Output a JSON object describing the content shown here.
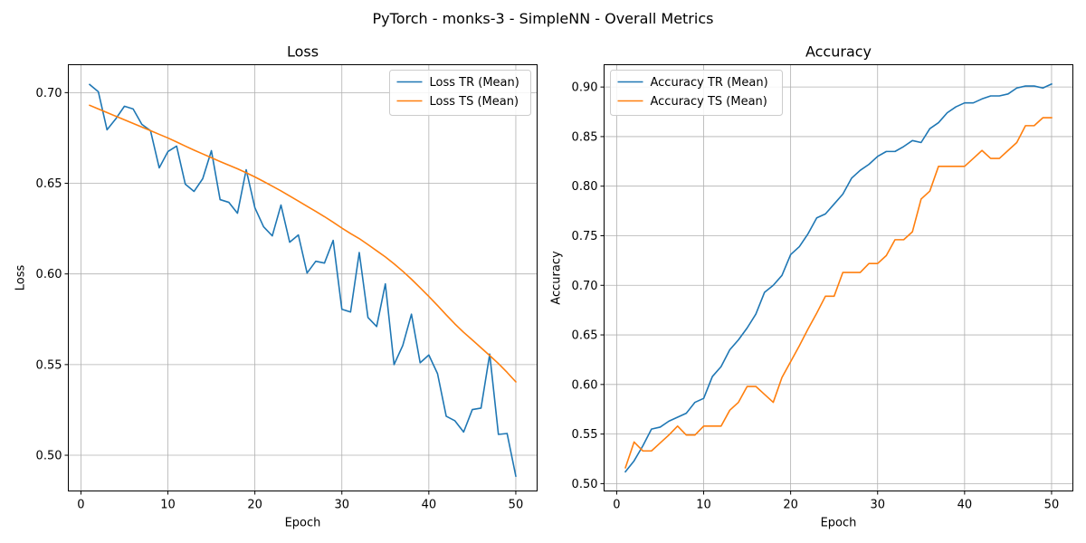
{
  "figure": {
    "suptitle": "PyTorch - monks-3 - SimpleNN - Overall Metrics"
  },
  "colors": {
    "series_tr": "#1f77b4",
    "series_ts": "#ff7f0e",
    "grid": "#b0b0b0",
    "axes": "#000000",
    "background": "#ffffff"
  },
  "chart_data": [
    {
      "type": "line",
      "title": "Loss",
      "xlabel": "Epoch",
      "ylabel": "Loss",
      "xlim": [
        -1.45,
        52.45
      ],
      "ylim": [
        0.4803,
        0.7154
      ],
      "xticks": [
        0,
        10,
        20,
        30,
        40,
        50
      ],
      "yticks": [
        0.5,
        0.55,
        0.6,
        0.65,
        0.7
      ],
      "ytick_labels": [
        "0.50",
        "0.55",
        "0.60",
        "0.65",
        "0.70"
      ],
      "grid": true,
      "legend": "upper right",
      "x": [
        1,
        2,
        3,
        4,
        5,
        6,
        7,
        8,
        9,
        10,
        11,
        12,
        13,
        14,
        15,
        16,
        17,
        18,
        19,
        20,
        21,
        22,
        23,
        24,
        25,
        26,
        27,
        28,
        29,
        30,
        31,
        32,
        33,
        34,
        35,
        36,
        37,
        38,
        39,
        40,
        41,
        42,
        43,
        44,
        45,
        46,
        47,
        48,
        49,
        50
      ],
      "series": [
        {
          "name": "Loss TR (Mean)",
          "values": [
            0.7045,
            0.7005,
            0.6795,
            0.6855,
            0.6925,
            0.691,
            0.6825,
            0.679,
            0.6585,
            0.6675,
            0.6705,
            0.6495,
            0.6455,
            0.6525,
            0.668,
            0.641,
            0.6395,
            0.6335,
            0.6575,
            0.6365,
            0.626,
            0.621,
            0.638,
            0.6175,
            0.6215,
            0.6005,
            0.607,
            0.606,
            0.6185,
            0.5805,
            0.579,
            0.6118,
            0.576,
            0.571,
            0.5945,
            0.55,
            0.5605,
            0.5778,
            0.551,
            0.5553,
            0.545,
            0.5215,
            0.519,
            0.5128,
            0.5252,
            0.526,
            0.5558,
            0.5115,
            0.512,
            0.4885
          ]
        },
        {
          "name": "Loss TS (Mean)",
          "values": [
            0.693,
            0.691,
            0.689,
            0.687,
            0.685,
            0.683,
            0.681,
            0.679,
            0.677,
            0.675,
            0.6728,
            0.6705,
            0.6683,
            0.6662,
            0.6641,
            0.662,
            0.66,
            0.658,
            0.6558,
            0.6535,
            0.651,
            0.6484,
            0.6458,
            0.643,
            0.6402,
            0.6373,
            0.6345,
            0.6316,
            0.6285,
            0.6253,
            0.6223,
            0.6195,
            0.6162,
            0.6128,
            0.6094,
            0.6056,
            0.6015,
            0.5971,
            0.5924,
            0.5876,
            0.5826,
            0.5774,
            0.5724,
            0.5678,
            0.5636,
            0.5593,
            0.555,
            0.5506,
            0.5457,
            0.5405
          ]
        }
      ]
    },
    {
      "type": "line",
      "title": "Accuracy",
      "xlabel": "Epoch",
      "ylabel": "Accuracy",
      "xlim": [
        -1.45,
        52.45
      ],
      "ylim": [
        0.4926,
        0.9225
      ],
      "xticks": [
        0,
        10,
        20,
        30,
        40,
        50
      ],
      "yticks": [
        0.5,
        0.55,
        0.6,
        0.65,
        0.7,
        0.75,
        0.8,
        0.85,
        0.9
      ],
      "ytick_labels": [
        "0.50",
        "0.55",
        "0.60",
        "0.65",
        "0.70",
        "0.75",
        "0.80",
        "0.85",
        "0.90"
      ],
      "grid": true,
      "legend": "upper left",
      "x": [
        1,
        2,
        3,
        4,
        5,
        6,
        7,
        8,
        9,
        10,
        11,
        12,
        13,
        14,
        15,
        16,
        17,
        18,
        19,
        20,
        21,
        22,
        23,
        24,
        25,
        26,
        27,
        28,
        29,
        30,
        31,
        32,
        33,
        34,
        35,
        36,
        37,
        38,
        39,
        40,
        41,
        42,
        43,
        44,
        45,
        46,
        47,
        48,
        49,
        50
      ],
      "series": [
        {
          "name": "Accuracy TR (Mean)",
          "values": [
            0.512,
            0.523,
            0.538,
            0.555,
            0.557,
            0.563,
            0.567,
            0.571,
            0.582,
            0.586,
            0.608,
            0.618,
            0.635,
            0.645,
            0.657,
            0.671,
            0.693,
            0.7,
            0.71,
            0.731,
            0.739,
            0.752,
            0.768,
            0.772,
            0.782,
            0.792,
            0.808,
            0.816,
            0.822,
            0.83,
            0.835,
            0.835,
            0.84,
            0.846,
            0.844,
            0.858,
            0.864,
            0.874,
            0.88,
            0.884,
            0.884,
            0.888,
            0.891,
            0.891,
            0.893,
            0.899,
            0.901,
            0.901,
            0.899,
            0.903
          ]
        },
        {
          "name": "Accuracy TS (Mean)",
          "values": [
            0.516,
            0.542,
            0.533,
            0.533,
            0.541,
            0.549,
            0.558,
            0.549,
            0.549,
            0.558,
            0.558,
            0.558,
            0.574,
            0.582,
            0.598,
            0.598,
            0.59,
            0.582,
            0.607,
            0.623,
            0.639,
            0.656,
            0.672,
            0.689,
            0.689,
            0.713,
            0.713,
            0.713,
            0.722,
            0.722,
            0.73,
            0.746,
            0.746,
            0.754,
            0.787,
            0.795,
            0.82,
            0.82,
            0.82,
            0.82,
            0.828,
            0.836,
            0.828,
            0.828,
            0.836,
            0.844,
            0.861,
            0.861,
            0.869,
            0.869
          ]
        }
      ]
    }
  ]
}
